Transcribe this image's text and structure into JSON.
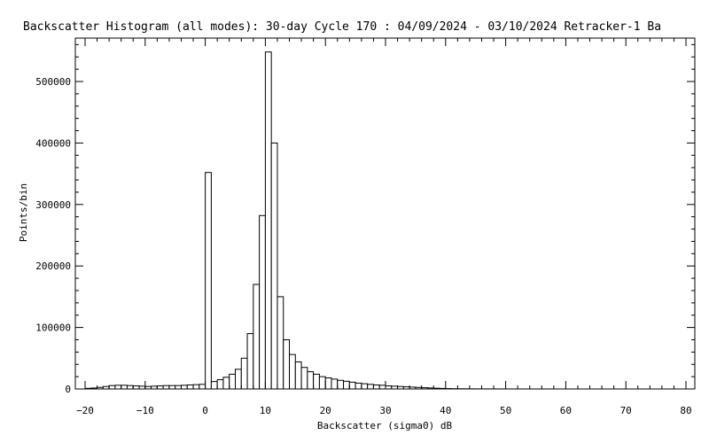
{
  "chart_data": {
    "type": "bar",
    "title": "Backscatter Histogram (all modes): 30-day Cycle 170 : 04/09/2024 - 03/10/2024 Retracker-1 Ba",
    "xlabel": "Backscatter (sigma0) dB",
    "ylabel": "Points/bin",
    "xlim": [
      -20,
      80
    ],
    "ylim": [
      0,
      575000
    ],
    "grid": false,
    "bin_width": 1,
    "x_ticks": [
      "-20",
      "-10",
      "0",
      "10",
      "20",
      "30",
      "40",
      "50",
      "60",
      "70",
      "80"
    ],
    "y_ticks": [
      "0",
      "100000",
      "200000",
      "300000",
      "400000",
      "500000"
    ],
    "bin_starts": [
      -20,
      -19,
      -18,
      -17,
      -16,
      -15,
      -14,
      -13,
      -12,
      -11,
      -10,
      -9,
      -8,
      -7,
      -6,
      -5,
      -4,
      -3,
      -2,
      -1,
      0,
      1,
      2,
      3,
      4,
      5,
      6,
      7,
      8,
      9,
      10,
      11,
      12,
      13,
      14,
      15,
      16,
      17,
      18,
      19,
      20,
      21,
      22,
      23,
      24,
      25,
      26,
      27,
      28,
      29,
      30,
      31,
      32,
      33,
      34,
      35,
      36,
      37,
      38,
      39,
      40,
      41,
      42,
      43,
      44,
      45,
      46,
      47,
      48,
      49,
      50,
      51,
      52,
      53,
      54,
      55,
      56,
      57,
      58,
      59,
      60,
      61,
      62,
      63,
      64,
      65,
      66,
      67,
      68,
      69,
      70,
      71,
      72,
      73,
      74,
      75,
      76,
      77,
      78,
      79
    ],
    "values": [
      1000,
      1500,
      2500,
      4000,
      5500,
      6000,
      6000,
      5500,
      5000,
      4500,
      4000,
      4500,
      5000,
      5500,
      5500,
      5500,
      6000,
      6500,
      7000,
      7500,
      352000,
      12000,
      15000,
      19000,
      24000,
      32000,
      50000,
      90000,
      170000,
      282000,
      548000,
      400000,
      150000,
      80000,
      56000,
      44000,
      35000,
      28000,
      24000,
      20000,
      18000,
      16000,
      14000,
      12500,
      11000,
      9500,
      8500,
      7500,
      6500,
      6000,
      5000,
      4500,
      4000,
      3500,
      3000,
      2500,
      2000,
      1600,
      1200,
      900,
      600,
      400,
      300,
      250,
      200,
      150,
      120,
      100,
      80,
      60,
      50,
      40,
      30,
      25,
      20,
      15,
      10,
      10,
      10,
      5,
      5,
      5,
      5,
      5,
      5,
      5,
      5,
      5,
      5,
      5,
      5,
      5,
      5,
      5,
      5,
      5,
      5,
      5,
      5,
      5
    ]
  }
}
